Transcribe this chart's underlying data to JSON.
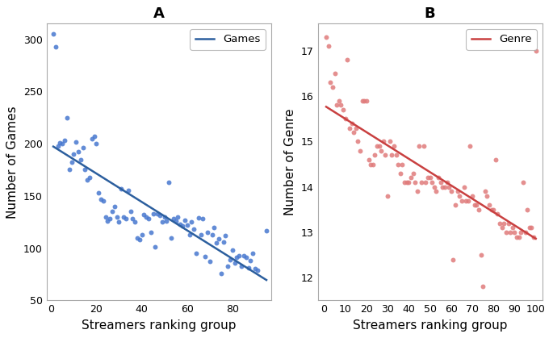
{
  "panel_A": {
    "title": "A",
    "xlabel": "Streamers ranking group",
    "ylabel": "Number of Games",
    "scatter_color": "#4878CF",
    "line_color": "#2c5f9e",
    "ci_color": "#4878CF",
    "legend_label": "Games",
    "xlim": [
      -2,
      97
    ],
    "ylim": [
      50,
      315
    ],
    "yticks": [
      50,
      100,
      150,
      200,
      250,
      300
    ],
    "xticks": [
      0,
      20,
      40,
      60,
      80
    ],
    "scatter_x": [
      1,
      2,
      3,
      4,
      5,
      6,
      7,
      8,
      9,
      10,
      11,
      12,
      13,
      14,
      15,
      16,
      17,
      18,
      19,
      20,
      21,
      22,
      23,
      24,
      25,
      26,
      27,
      28,
      29,
      30,
      31,
      32,
      33,
      34,
      35,
      36,
      37,
      38,
      39,
      40,
      41,
      42,
      43,
      44,
      45,
      46,
      47,
      48,
      49,
      50,
      51,
      52,
      53,
      54,
      55,
      56,
      57,
      58,
      59,
      60,
      61,
      62,
      63,
      64,
      65,
      66,
      67,
      68,
      69,
      70,
      71,
      72,
      73,
      74,
      75,
      76,
      77,
      78,
      79,
      80,
      81,
      82,
      83,
      84,
      85,
      86,
      87,
      88,
      89,
      90,
      91,
      95
    ],
    "scatter_y": [
      305,
      293,
      198,
      201,
      200,
      203,
      225,
      175,
      182,
      190,
      202,
      192,
      185,
      196,
      175,
      165,
      168,
      205,
      207,
      200,
      153,
      147,
      145,
      130,
      126,
      128,
      135,
      140,
      130,
      125,
      157,
      130,
      128,
      155,
      135,
      128,
      125,
      110,
      108,
      113,
      132,
      130,
      128,
      115,
      133,
      101,
      133,
      131,
      125,
      130,
      126,
      163,
      110,
      128,
      126,
      130,
      123,
      121,
      127,
      122,
      113,
      125,
      118,
      95,
      129,
      113,
      128,
      92,
      115,
      87,
      113,
      120,
      105,
      109,
      76,
      106,
      112,
      83,
      89,
      98,
      86,
      91,
      93,
      83,
      93,
      91,
      81,
      88,
      95,
      80,
      79,
      117
    ]
  },
  "panel_B": {
    "title": "B",
    "xlabel": "Streamers ranking group",
    "ylabel": "Number of Genre",
    "scatter_color": "#e07b7b",
    "line_color": "#c94040",
    "ci_color": "#e07b7b",
    "legend_label": "Genre",
    "xlim": [
      -3,
      103
    ],
    "ylim": [
      11.5,
      17.6
    ],
    "yticks": [
      12,
      13,
      14,
      15,
      16,
      17
    ],
    "xticks": [
      0,
      10,
      20,
      30,
      40,
      50,
      60,
      70,
      80,
      90,
      100
    ],
    "scatter_x": [
      1,
      2,
      3,
      4,
      5,
      6,
      7,
      8,
      9,
      10,
      11,
      12,
      13,
      14,
      15,
      16,
      17,
      18,
      19,
      20,
      21,
      22,
      23,
      24,
      25,
      26,
      27,
      28,
      29,
      30,
      31,
      32,
      33,
      34,
      35,
      36,
      37,
      38,
      39,
      40,
      41,
      42,
      43,
      44,
      45,
      46,
      47,
      48,
      49,
      50,
      51,
      52,
      53,
      54,
      55,
      56,
      57,
      58,
      59,
      60,
      61,
      62,
      63,
      64,
      65,
      66,
      67,
      68,
      69,
      70,
      71,
      72,
      73,
      74,
      75,
      76,
      77,
      78,
      79,
      80,
      81,
      82,
      83,
      84,
      85,
      86,
      87,
      88,
      89,
      90,
      91,
      92,
      93,
      94,
      95,
      96,
      97,
      98,
      99,
      100
    ],
    "scatter_y": [
      17.3,
      17.1,
      16.3,
      16.2,
      16.5,
      15.8,
      15.9,
      15.8,
      15.7,
      15.5,
      16.8,
      15.3,
      15.4,
      15.2,
      15.3,
      15.0,
      14.8,
      15.9,
      15.9,
      15.9,
      14.6,
      14.5,
      14.5,
      14.7,
      14.9,
      14.9,
      14.8,
      15.0,
      14.7,
      13.8,
      15.0,
      14.7,
      14.9,
      14.7,
      14.5,
      14.3,
      14.5,
      14.1,
      14.1,
      14.1,
      14.2,
      14.3,
      14.1,
      13.9,
      14.9,
      14.1,
      14.9,
      14.1,
      14.2,
      14.2,
      14.1,
      14.0,
      13.9,
      14.2,
      14.1,
      14.0,
      14.0,
      14.1,
      14.0,
      13.9,
      12.4,
      13.6,
      13.9,
      13.8,
      13.7,
      14.0,
      13.7,
      13.7,
      14.9,
      13.8,
      13.6,
      13.6,
      13.5,
      12.5,
      11.8,
      13.9,
      13.8,
      13.6,
      13.5,
      13.5,
      14.6,
      13.4,
      13.2,
      13.1,
      13.2,
      13.0,
      13.2,
      13.0,
      13.1,
      13.0,
      12.9,
      12.9,
      13.0,
      14.1,
      13.0,
      13.5,
      13.1,
      13.1,
      12.9,
      17.0
    ]
  },
  "figure_bg": "#ffffff",
  "axes_bg": "#ffffff",
  "font_size": 11,
  "title_font_size": 13,
  "scatter_size": 18,
  "scatter_alpha": 0.85,
  "line_width": 1.8,
  "ci_alpha": 0.22
}
